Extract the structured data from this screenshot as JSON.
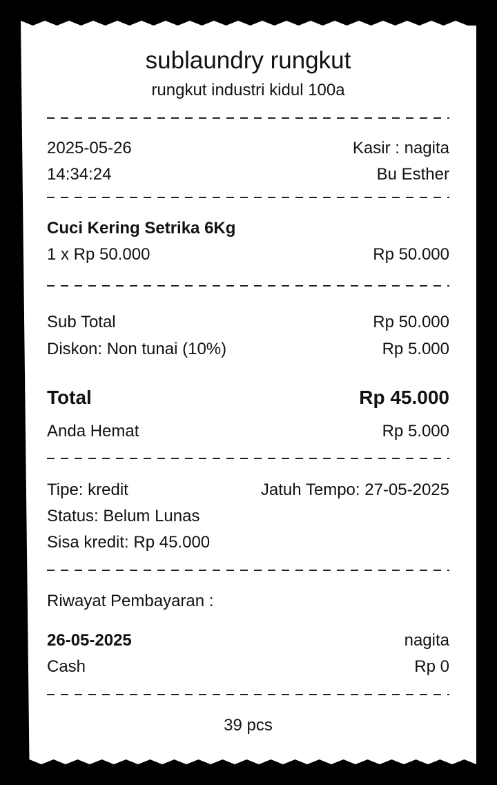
{
  "store": {
    "name": "sublaundry rungkut",
    "address": "rungkut industri kidul 100a"
  },
  "meta": {
    "date": "2025-05-26",
    "time": "14:34:24",
    "cashier": "Kasir : nagita",
    "customer": "Bu Esther"
  },
  "items": [
    {
      "name": "Cuci Kering Setrika 6Kg",
      "qty_price": "1 x Rp 50.000",
      "amount": "Rp 50.000"
    }
  ],
  "summary": {
    "subtotal_label": "Sub Total",
    "subtotal": "Rp 50.000",
    "discount_label": "Diskon: Non tunai (10%)",
    "discount": "Rp 5.000",
    "total_label": "Total",
    "total": "Rp 45.000",
    "saved_label": "Anda Hemat",
    "saved": "Rp 5.000"
  },
  "payment": {
    "type": "Tipe: kredit",
    "due": "Jatuh Tempo: 27-05-2025",
    "status": "Status: Belum Lunas",
    "remaining": "Sisa kredit: Rp 45.000"
  },
  "history": {
    "title": "Riwayat Pembayaran :",
    "entries": [
      {
        "date": "26-05-2025",
        "user": "nagita",
        "method": "Cash",
        "amount": "Rp 0"
      }
    ]
  },
  "footer": {
    "pieces": "39 pcs"
  }
}
